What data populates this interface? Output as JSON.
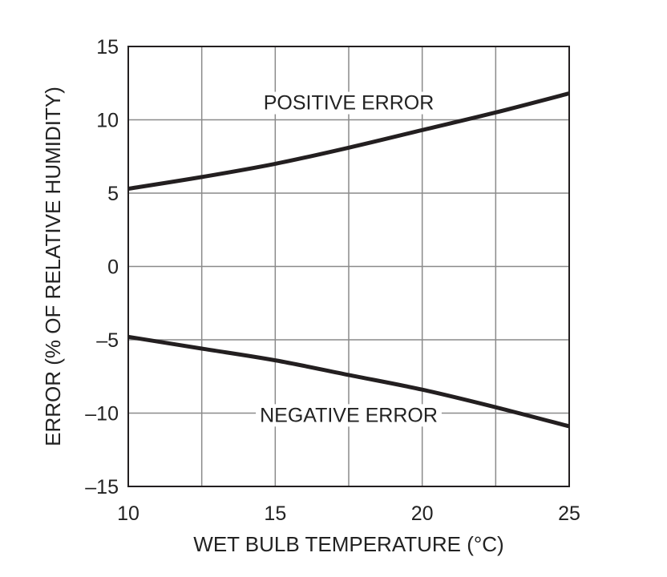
{
  "chart_data": {
    "type": "line",
    "title": "",
    "xlabel": "WET BULB TEMPERATURE (°C)",
    "ylabel": "ERROR (% OF RELATIVE HUMIDITY)",
    "xlim": [
      10,
      25
    ],
    "ylim": [
      -15,
      15
    ],
    "x_ticks": [
      10,
      15,
      20,
      25
    ],
    "y_ticks": [
      15,
      10,
      5,
      0,
      -5,
      -10,
      -15
    ],
    "x_tick_labels": [
      "10",
      "15",
      "20",
      "25"
    ],
    "y_tick_labels": [
      "15",
      "10",
      "5",
      "0",
      "–5",
      "–10",
      "–15"
    ],
    "x_gridlines": [
      10,
      12.5,
      15,
      17.5,
      20,
      22.5,
      25
    ],
    "y_gridlines": [
      -15,
      -10,
      -5,
      0,
      5,
      10,
      15
    ],
    "grid": true,
    "legend": "none",
    "colors": {
      "line": "#231f20",
      "grid": "#8a8a8a",
      "frame": "#231f20",
      "text": "#222222"
    },
    "annotations": [
      {
        "text": "POSITIVE ERROR",
        "x": 17.5,
        "y": 11.2
      },
      {
        "text": "NEGATIVE ERROR",
        "x": 17.5,
        "y": -10.1
      }
    ],
    "series": [
      {
        "x": [
          10,
          12.5,
          15,
          17.5,
          20,
          22.5,
          25
        ],
        "values": [
          5.3,
          6.1,
          7.0,
          8.1,
          9.3,
          10.5,
          11.8
        ]
      },
      {
        "x": [
          10,
          12.5,
          15,
          17.5,
          20,
          22.5,
          25
        ],
        "values": [
          -4.8,
          -5.6,
          -6.4,
          -7.4,
          -8.4,
          -9.6,
          -10.9
        ]
      }
    ]
  }
}
